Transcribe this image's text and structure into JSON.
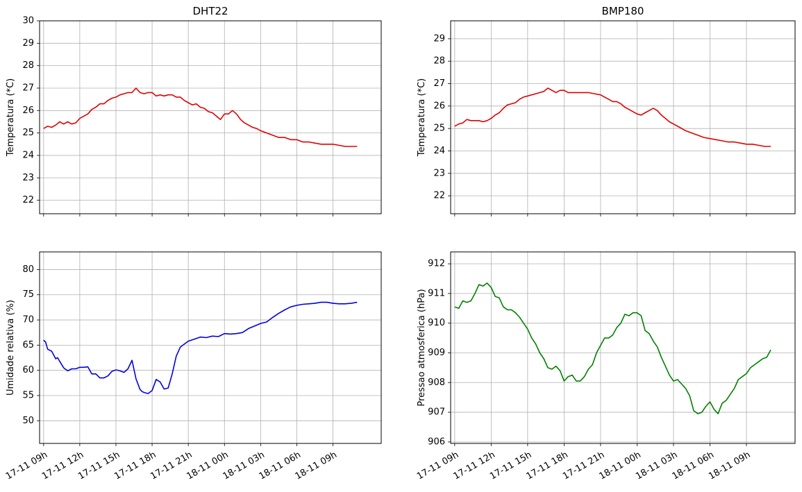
{
  "chart_data": [
    {
      "type": "line",
      "title": "DHT22",
      "xlabel": "",
      "ylabel": "Temperatura (*C)",
      "xlim": [
        "2023-11-17 08:40",
        "2023-11-18 13:00"
      ],
      "ylim": [
        21.4,
        30.0
      ],
      "yticks": [
        22,
        23,
        24,
        25,
        26,
        27,
        28,
        29,
        30
      ],
      "xticks": [],
      "grid": true,
      "series": [
        {
          "color": "#e00000",
          "x": [
            "2023-11-17 09:00",
            "2023-11-17 09:20",
            "2023-11-17 09:40",
            "2023-11-17 10:00",
            "2023-11-17 10:20",
            "2023-11-17 10:40",
            "2023-11-17 11:00",
            "2023-11-17 11:20",
            "2023-11-17 11:40",
            "2023-11-17 12:00",
            "2023-11-17 12:20",
            "2023-11-17 12:40",
            "2023-11-17 13:00",
            "2023-11-17 13:20",
            "2023-11-17 13:40",
            "2023-11-17 14:00",
            "2023-11-17 14:20",
            "2023-11-17 14:40",
            "2023-11-17 15:00",
            "2023-11-17 15:20",
            "2023-11-17 15:40",
            "2023-11-17 16:00",
            "2023-11-17 16:20",
            "2023-11-17 16:40",
            "2023-11-17 17:00",
            "2023-11-17 17:20",
            "2023-11-17 17:40",
            "2023-11-17 18:00",
            "2023-11-17 18:20",
            "2023-11-17 18:40",
            "2023-11-17 19:00",
            "2023-11-17 19:20",
            "2023-11-17 19:40",
            "2023-11-17 20:00",
            "2023-11-17 20:20",
            "2023-11-17 20:40",
            "2023-11-17 21:00",
            "2023-11-17 21:20",
            "2023-11-17 21:40",
            "2023-11-17 22:00",
            "2023-11-17 22:20",
            "2023-11-17 22:40",
            "2023-11-17 23:00",
            "2023-11-17 23:20",
            "2023-11-17 23:40",
            "2023-11-18 00:00",
            "2023-11-18 00:20",
            "2023-11-18 00:40",
            "2023-11-18 01:00",
            "2023-11-18 01:20",
            "2023-11-18 01:40",
            "2023-11-18 02:00",
            "2023-11-18 02:20",
            "2023-11-18 02:40",
            "2023-11-18 03:00",
            "2023-11-18 03:30",
            "2023-11-18 04:00",
            "2023-11-18 04:30",
            "2023-11-18 05:00",
            "2023-11-18 05:30",
            "2023-11-18 06:00",
            "2023-11-18 06:30",
            "2023-11-18 07:00",
            "2023-11-18 07:30",
            "2023-11-18 08:00",
            "2023-11-18 08:30",
            "2023-11-18 09:00",
            "2023-11-18 09:30",
            "2023-11-18 10:00",
            "2023-11-18 10:30",
            "2023-11-18 11:00"
          ],
          "y": [
            25.2,
            25.3,
            25.25,
            25.35,
            25.5,
            25.4,
            25.5,
            25.4,
            25.45,
            25.65,
            25.75,
            25.85,
            26.05,
            26.15,
            26.3,
            26.3,
            26.45,
            26.55,
            26.6,
            26.7,
            26.75,
            26.8,
            26.8,
            27.0,
            26.8,
            26.75,
            26.8,
            26.8,
            26.65,
            26.7,
            26.65,
            26.7,
            26.7,
            26.6,
            26.6,
            26.45,
            26.35,
            26.25,
            26.3,
            26.15,
            26.1,
            25.95,
            25.9,
            25.75,
            25.6,
            25.85,
            25.85,
            26.0,
            25.85,
            25.6,
            25.45,
            25.35,
            25.25,
            25.2,
            25.1,
            25.0,
            24.9,
            24.8,
            24.8,
            24.7,
            24.7,
            24.6,
            24.6,
            24.55,
            24.5,
            24.5,
            24.5,
            24.45,
            24.4,
            24.4,
            24.4
          ]
        }
      ]
    },
    {
      "type": "line",
      "title": "BMP180",
      "xlabel": "",
      "ylabel": "Temperatura (*C)",
      "xlim": [
        "2023-11-17 08:40",
        "2023-11-18 13:00"
      ],
      "ylim": [
        21.2,
        29.8
      ],
      "yticks": [
        22,
        23,
        24,
        25,
        26,
        27,
        28,
        29
      ],
      "xticks": [],
      "grid": true,
      "series": [
        {
          "color": "#e00000",
          "x": [
            "2023-11-17 09:00",
            "2023-11-17 09:20",
            "2023-11-17 09:40",
            "2023-11-17 10:00",
            "2023-11-17 10:20",
            "2023-11-17 10:40",
            "2023-11-17 11:00",
            "2023-11-17 11:20",
            "2023-11-17 11:40",
            "2023-11-17 12:00",
            "2023-11-17 12:20",
            "2023-11-17 12:40",
            "2023-11-17 13:00",
            "2023-11-17 13:20",
            "2023-11-17 13:40",
            "2023-11-17 14:00",
            "2023-11-17 14:20",
            "2023-11-17 14:40",
            "2023-11-17 15:00",
            "2023-11-17 15:20",
            "2023-11-17 15:40",
            "2023-11-17 16:00",
            "2023-11-17 16:20",
            "2023-11-17 16:40",
            "2023-11-17 17:00",
            "2023-11-17 17:20",
            "2023-11-17 17:40",
            "2023-11-17 18:00",
            "2023-11-17 18:20",
            "2023-11-17 18:40",
            "2023-11-17 19:00",
            "2023-11-17 19:30",
            "2023-11-17 20:00",
            "2023-11-17 20:30",
            "2023-11-17 21:00",
            "2023-11-17 21:20",
            "2023-11-17 21:40",
            "2023-11-17 22:00",
            "2023-11-17 22:20",
            "2023-11-17 22:40",
            "2023-11-17 23:00",
            "2023-11-17 23:20",
            "2023-11-17 23:40",
            "2023-11-18 00:00",
            "2023-11-18 00:20",
            "2023-11-18 00:40",
            "2023-11-18 01:00",
            "2023-11-18 01:20",
            "2023-11-18 01:40",
            "2023-11-18 02:00",
            "2023-11-18 02:20",
            "2023-11-18 02:40",
            "2023-11-18 03:00",
            "2023-11-18 03:30",
            "2023-11-18 04:00",
            "2023-11-18 04:30",
            "2023-11-18 05:00",
            "2023-11-18 05:30",
            "2023-11-18 06:00",
            "2023-11-18 06:30",
            "2023-11-18 07:00",
            "2023-11-18 07:30",
            "2023-11-18 08:00",
            "2023-11-18 08:30",
            "2023-11-18 09:00",
            "2023-11-18 09:30",
            "2023-11-18 10:00",
            "2023-11-18 10:30",
            "2023-11-18 11:00"
          ],
          "y": [
            25.1,
            25.2,
            25.25,
            25.4,
            25.35,
            25.35,
            25.35,
            25.3,
            25.35,
            25.45,
            25.6,
            25.7,
            25.9,
            26.05,
            26.1,
            26.15,
            26.3,
            26.4,
            26.45,
            26.5,
            26.55,
            26.6,
            26.65,
            26.8,
            26.7,
            26.6,
            26.7,
            26.7,
            26.6,
            26.6,
            26.6,
            26.6,
            26.6,
            26.55,
            26.5,
            26.4,
            26.3,
            26.2,
            26.2,
            26.1,
            25.95,
            25.85,
            25.75,
            25.65,
            25.6,
            25.7,
            25.8,
            25.9,
            25.8,
            25.6,
            25.45,
            25.3,
            25.2,
            25.05,
            24.9,
            24.8,
            24.7,
            24.6,
            24.55,
            24.5,
            24.45,
            24.4,
            24.4,
            24.35,
            24.3,
            24.3,
            24.25,
            24.2,
            24.2
          ]
        }
      ]
    },
    {
      "type": "line",
      "title": "",
      "xlabel": "",
      "ylabel": "Umidade relativa (%)",
      "xlim": [
        "2023-11-17 08:40",
        "2023-11-18 13:00"
      ],
      "ylim": [
        45.5,
        83.5
      ],
      "yticks": [
        50,
        55,
        60,
        65,
        70,
        75,
        80
      ],
      "xticks": [
        "17-11 09h",
        "17-11 12h",
        "17-11 15h",
        "17-11 18h",
        "17-11 21h",
        "18-11 00h",
        "18-11 03h",
        "18-11 06h",
        "18-11 09h"
      ],
      "grid": true,
      "series": [
        {
          "color": "#0000e0",
          "x": [
            "2023-11-17 09:00",
            "2023-11-17 09:10",
            "2023-11-17 09:20",
            "2023-11-17 09:40",
            "2023-11-17 10:00",
            "2023-11-17 10:10",
            "2023-11-17 10:20",
            "2023-11-17 10:40",
            "2023-11-17 11:00",
            "2023-11-17 11:20",
            "2023-11-17 11:40",
            "2023-11-17 12:00",
            "2023-11-17 12:20",
            "2023-11-17 12:40",
            "2023-11-17 13:00",
            "2023-11-17 13:20",
            "2023-11-17 13:40",
            "2023-11-17 14:00",
            "2023-11-17 14:20",
            "2023-11-17 14:40",
            "2023-11-17 15:00",
            "2023-11-17 15:20",
            "2023-11-17 15:40",
            "2023-11-17 16:00",
            "2023-11-17 16:20",
            "2023-11-17 16:40",
            "2023-11-17 17:00",
            "2023-11-17 17:10",
            "2023-11-17 17:20",
            "2023-11-17 17:40",
            "2023-11-17 18:00",
            "2023-11-17 18:20",
            "2023-11-17 18:40",
            "2023-11-17 19:00",
            "2023-11-17 19:20",
            "2023-11-17 19:40",
            "2023-11-17 20:00",
            "2023-11-17 20:20",
            "2023-11-17 20:40",
            "2023-11-17 21:00",
            "2023-11-17 21:30",
            "2023-11-17 22:00",
            "2023-11-17 22:30",
            "2023-11-17 23:00",
            "2023-11-17 23:30",
            "2023-11-18 00:00",
            "2023-11-18 00:30",
            "2023-11-18 01:00",
            "2023-11-18 01:30",
            "2023-11-18 02:00",
            "2023-11-18 02:30",
            "2023-11-18 03:00",
            "2023-11-18 03:30",
            "2023-11-18 04:00",
            "2023-11-18 04:30",
            "2023-11-18 05:00",
            "2023-11-18 05:30",
            "2023-11-18 06:00",
            "2023-11-18 06:30",
            "2023-11-18 07:00",
            "2023-11-18 07:30",
            "2023-11-18 08:00",
            "2023-11-18 08:30",
            "2023-11-18 09:00",
            "2023-11-18 09:30",
            "2023-11-18 10:00",
            "2023-11-18 10:30",
            "2023-11-18 11:00"
          ],
          "y": [
            66.0,
            65.6,
            64.2,
            63.8,
            62.3,
            62.5,
            61.8,
            60.5,
            59.9,
            60.3,
            60.3,
            60.6,
            60.6,
            60.7,
            59.3,
            59.3,
            58.5,
            58.5,
            58.9,
            59.8,
            60.1,
            59.9,
            59.6,
            60.3,
            62.0,
            58.3,
            56.2,
            55.8,
            55.6,
            55.4,
            56.0,
            58.2,
            57.7,
            56.3,
            56.5,
            59.3,
            62.8,
            64.6,
            65.2,
            65.8,
            66.2,
            66.6,
            66.5,
            66.8,
            66.7,
            67.3,
            67.2,
            67.3,
            67.5,
            68.3,
            68.8,
            69.3,
            69.6,
            70.5,
            71.3,
            72.0,
            72.6,
            72.9,
            73.1,
            73.2,
            73.3,
            73.5,
            73.5,
            73.3,
            73.2,
            73.2,
            73.3,
            73.5
          ]
        }
      ]
    },
    {
      "type": "line",
      "title": "",
      "xlabel": "",
      "ylabel": "Pressao atmosferica (hPa)",
      "xlim": [
        "2023-11-17 08:40",
        "2023-11-18 13:00"
      ],
      "ylim": [
        905.95,
        912.4
      ],
      "yticks": [
        906,
        907,
        908,
        909,
        910,
        911,
        912
      ],
      "xticks": [
        "17-11 09h",
        "17-11 12h",
        "17-11 15h",
        "17-11 18h",
        "17-11 21h",
        "18-11 00h",
        "18-11 03h",
        "18-11 06h",
        "18-11 09h"
      ],
      "grid": true,
      "series": [
        {
          "color": "#008000",
          "x": [
            "2023-11-17 09:00",
            "2023-11-17 09:20",
            "2023-11-17 09:40",
            "2023-11-17 10:00",
            "2023-11-17 10:20",
            "2023-11-17 10:40",
            "2023-11-17 11:00",
            "2023-11-17 11:20",
            "2023-11-17 11:40",
            "2023-11-17 12:00",
            "2023-11-17 12:20",
            "2023-11-17 12:40",
            "2023-11-17 13:00",
            "2023-11-17 13:20",
            "2023-11-17 13:40",
            "2023-11-17 14:00",
            "2023-11-17 14:20",
            "2023-11-17 14:40",
            "2023-11-17 15:00",
            "2023-11-17 15:20",
            "2023-11-17 15:40",
            "2023-11-17 16:00",
            "2023-11-17 16:20",
            "2023-11-17 16:40",
            "2023-11-17 17:00",
            "2023-11-17 17:20",
            "2023-11-17 17:40",
            "2023-11-17 18:00",
            "2023-11-17 18:20",
            "2023-11-17 18:40",
            "2023-11-17 19:00",
            "2023-11-17 19:20",
            "2023-11-17 19:40",
            "2023-11-17 20:00",
            "2023-11-17 20:20",
            "2023-11-17 20:40",
            "2023-11-17 21:00",
            "2023-11-17 21:20",
            "2023-11-17 21:40",
            "2023-11-17 22:00",
            "2023-11-17 22:20",
            "2023-11-17 22:40",
            "2023-11-17 23:00",
            "2023-11-17 23:20",
            "2023-11-17 23:40",
            "2023-11-18 00:00",
            "2023-11-18 00:20",
            "2023-11-18 00:40",
            "2023-11-18 01:00",
            "2023-11-18 01:20",
            "2023-11-18 01:40",
            "2023-11-18 02:00",
            "2023-11-18 02:20",
            "2023-11-18 02:40",
            "2023-11-18 03:00",
            "2023-11-18 03:20",
            "2023-11-18 03:40",
            "2023-11-18 04:00",
            "2023-11-18 04:20",
            "2023-11-18 04:40",
            "2023-11-18 05:00",
            "2023-11-18 05:20",
            "2023-11-18 05:40",
            "2023-11-18 06:00",
            "2023-11-18 06:20",
            "2023-11-18 06:40",
            "2023-11-18 07:00",
            "2023-11-18 07:20",
            "2023-11-18 07:40",
            "2023-11-18 08:00",
            "2023-11-18 08:20",
            "2023-11-18 08:40",
            "2023-11-18 09:00",
            "2023-11-18 09:20",
            "2023-11-18 09:40",
            "2023-11-18 10:00",
            "2023-11-18 10:20",
            "2023-11-18 10:40",
            "2023-11-18 11:00"
          ],
          "y": [
            910.55,
            910.5,
            910.75,
            910.7,
            910.75,
            911.0,
            911.3,
            911.25,
            911.35,
            911.2,
            910.9,
            910.85,
            910.55,
            910.45,
            910.45,
            910.35,
            910.2,
            910.0,
            909.8,
            909.5,
            909.3,
            909.0,
            908.8,
            908.5,
            908.45,
            908.55,
            908.4,
            908.05,
            908.2,
            908.25,
            908.05,
            908.05,
            908.2,
            908.45,
            908.6,
            909.0,
            909.25,
            909.5,
            909.5,
            909.6,
            909.85,
            910.0,
            910.3,
            910.25,
            910.35,
            910.35,
            910.25,
            909.75,
            909.65,
            909.4,
            909.2,
            908.85,
            908.55,
            908.25,
            908.05,
            908.1,
            907.95,
            907.8,
            907.55,
            907.05,
            906.95,
            907.0,
            907.2,
            907.35,
            907.1,
            906.95,
            907.3,
            907.4,
            907.6,
            907.8,
            908.1,
            908.2,
            908.3,
            908.5,
            908.6,
            908.7,
            908.8,
            908.85,
            909.1
          ]
        }
      ]
    }
  ]
}
